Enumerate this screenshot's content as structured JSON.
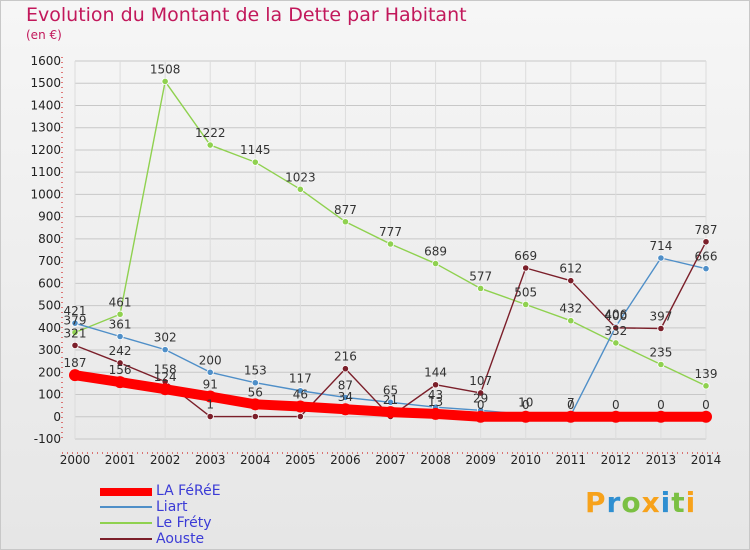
{
  "header": {
    "title": "Evolution du Montant de la Dette par Habitant",
    "subtitle": "(en €)"
  },
  "logo": {
    "text": "Proxiti"
  },
  "colors": {
    "title": "#c2185b",
    "grid_axis": "#bdbdbd",
    "axis_ticks_red": "#cc0000"
  },
  "chart_data": {
    "type": "line",
    "title": "Evolution du Montant de la Dette par Habitant",
    "subtitle": "(en €)",
    "xlabel": "",
    "ylabel": "",
    "x": [
      "2000",
      "2001",
      "2002",
      "2003",
      "2004",
      "2005",
      "2006",
      "2007",
      "2008",
      "2009",
      "2010",
      "2011",
      "2012",
      "2013",
      "2014"
    ],
    "ylim": [
      -100,
      1600
    ],
    "yticks": [
      -100,
      0,
      100,
      200,
      300,
      400,
      500,
      600,
      700,
      800,
      900,
      1000,
      1100,
      1200,
      1300,
      1400,
      1500,
      1600
    ],
    "legend_position": "bottom-left",
    "series": [
      {
        "name": "LA FéRéE",
        "color": "#ff0000",
        "values": [
          187,
          156,
          124,
          91,
          56,
          46,
          34,
          21,
          13,
          0,
          0,
          0,
          0,
          0,
          0
        ],
        "labels": [
          "187",
          "156",
          "124",
          "91",
          "56",
          "46",
          "34",
          "21",
          "13",
          "0",
          "0",
          "0",
          "0",
          "0",
          "0"
        ]
      },
      {
        "name": "Liart",
        "color": "#4f8fc8",
        "values": [
          421,
          361,
          302,
          200,
          153,
          117,
          87,
          65,
          43,
          29,
          10,
          7,
          406,
          714,
          666
        ],
        "labels": [
          "421",
          "361",
          "302",
          "200",
          "153",
          "117",
          "87",
          "65",
          "43",
          "29",
          "10",
          "7",
          "406",
          "714",
          "666"
        ]
      },
      {
        "name": "Le Fréty",
        "color": "#8fd14f",
        "values": [
          379,
          461,
          1508,
          1222,
          1145,
          1023,
          877,
          777,
          689,
          577,
          505,
          432,
          332,
          235,
          139
        ],
        "labels": [
          "379",
          "461",
          "1508",
          "1222",
          "1145",
          "1023",
          "877",
          "777",
          "689",
          "577",
          "505",
          "432",
          "332",
          "235",
          "139"
        ]
      },
      {
        "name": "Aouste",
        "color": "#7b1f2a",
        "values": [
          321,
          242,
          158,
          1,
          1,
          1,
          216,
          1,
          144,
          107,
          669,
          612,
          400,
          397,
          787
        ],
        "labels": [
          "321",
          "242",
          "158",
          "1",
          "",
          "",
          "216",
          "",
          "144",
          "107",
          "669",
          "612",
          "400",
          "397",
          "787"
        ]
      }
    ]
  }
}
